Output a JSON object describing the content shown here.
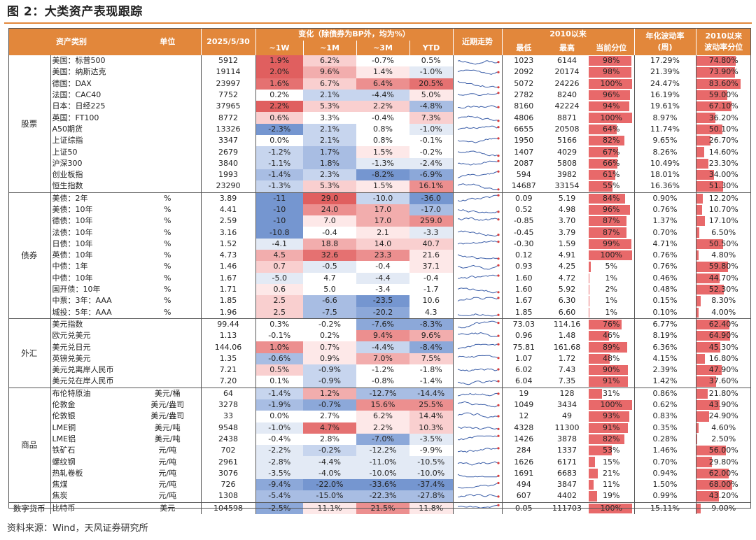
{
  "title": "图 2：大类资产表现跟踪",
  "source": "资料来源：Wind，天风证券研究所",
  "header": {
    "top": {
      "change_group": "变化（除债券为BP外，均为%）",
      "since2010": "2010以来"
    },
    "asset": "资产类别",
    "unit": "单位",
    "date": "2025/5/30",
    "w1": "~1W",
    "m1": "~1M",
    "m3": "~3M",
    "ytd": "YTD",
    "trend": "近期走势",
    "low": "最低",
    "high": "最高",
    "pct": "当前分位",
    "vol": "年化波动率",
    "vol_sub": "(周)",
    "volpct": "2010以来",
    "volpct_sub": "波动率分位"
  },
  "groups": [
    {
      "name": "股票",
      "rows": [
        {
          "name": "美国：标普500",
          "unit": "",
          "value": "5912",
          "w1": "1.9%",
          "m1": "6.2%",
          "m3": "-0.7%",
          "ytd": "0.5%",
          "low": "1023",
          "high": "6144",
          "pct": "98%",
          "pct_v": 98,
          "vol": "17.29%",
          "volpct": "74.80%",
          "volpct_v": 74.8,
          "c": [
            6,
            2,
            0,
            0
          ]
        },
        {
          "name": "美国：纳斯达克",
          "unit": "",
          "value": "19114",
          "w1": "2.0%",
          "m1": "9.6%",
          "m3": "1.4%",
          "ytd": "-1.0%",
          "low": "2092",
          "high": "20174",
          "pct": "98%",
          "pct_v": 98,
          "vol": "21.39%",
          "volpct": "73.90%",
          "volpct_v": 73.9,
          "c": [
            6,
            3,
            1,
            -1
          ]
        },
        {
          "name": "德国：DAX",
          "unit": "",
          "value": "23997",
          "w1": "1.6%",
          "m1": "6.7%",
          "m3": "6.4%",
          "ytd": "20.5%",
          "low": "5072",
          "high": "24226",
          "pct": "100%",
          "pct_v": 100,
          "vol": "24.47%",
          "volpct": "83.60%",
          "volpct_v": 83.6,
          "c": [
            5,
            2,
            4,
            5
          ]
        },
        {
          "name": "法国：CAC40",
          "unit": "",
          "value": "7752",
          "w1": "0.2%",
          "m1": "2.1%",
          "m3": "-4.4%",
          "ytd": "5.0%",
          "low": "2782",
          "high": "8240",
          "pct": "96%",
          "pct_v": 96,
          "vol": "16.19%",
          "volpct": "59.00%",
          "volpct_v": 59.0,
          "c": [
            0,
            -2,
            -2,
            1
          ]
        },
        {
          "name": "日本：日经225",
          "unit": "",
          "value": "37965",
          "w1": "2.2%",
          "m1": "5.3%",
          "m3": "2.2%",
          "ytd": "-4.8%",
          "low": "8160",
          "high": "42224",
          "pct": "94%",
          "pct_v": 94,
          "vol": "19.61%",
          "volpct": "67.10%",
          "volpct_v": 67.1,
          "c": [
            6,
            2,
            2,
            -3
          ]
        },
        {
          "name": "英国：FT100",
          "unit": "",
          "value": "8772",
          "w1": "0.6%",
          "m1": "3.3%",
          "m3": "-0.4%",
          "ytd": "7.3%",
          "low": "4806",
          "high": "8871",
          "pct": "100%",
          "pct_v": 100,
          "vol": "8.97%",
          "volpct": "36.20%",
          "volpct_v": 36.2,
          "c": [
            2,
            0,
            0,
            2
          ]
        },
        {
          "name": "A50期货",
          "unit": "",
          "value": "13326",
          "w1": "-2.3%",
          "m1": "2.1%",
          "m3": "0.8%",
          "ytd": "-1.0%",
          "low": "6655",
          "high": "20508",
          "pct": "64%",
          "pct_v": 64,
          "vol": "11.74%",
          "volpct": "50.10%",
          "volpct_v": 50.1,
          "c": [
            -5,
            -2,
            0,
            -1
          ]
        },
        {
          "name": "上证综指",
          "unit": "",
          "value": "3347",
          "w1": "0.0%",
          "m1": "2.1%",
          "m3": "0.8%",
          "ytd": "-0.1%",
          "low": "1950",
          "high": "5166",
          "pct": "82%",
          "pct_v": 82,
          "vol": "9.65%",
          "volpct": "26.70%",
          "volpct_v": 26.7,
          "c": [
            0,
            -2,
            0,
            0
          ]
        },
        {
          "name": "上证50",
          "unit": "",
          "value": "2679",
          "w1": "-1.2%",
          "m1": "1.7%",
          "m3": "1.5%",
          "ytd": "-0.2%",
          "low": "1407",
          "high": "4029",
          "pct": "67%",
          "pct_v": 67,
          "vol": "8.26%",
          "volpct": "14.60%",
          "volpct_v": 14.6,
          "c": [
            -2,
            -3,
            1,
            0
          ]
        },
        {
          "name": "沪深300",
          "unit": "",
          "value": "3840",
          "w1": "-1.1%",
          "m1": "1.8%",
          "m3": "-1.3%",
          "ytd": "-2.4%",
          "low": "2087",
          "high": "5808",
          "pct": "66%",
          "pct_v": 66,
          "vol": "10.49%",
          "volpct": "23.30%",
          "volpct_v": 23.3,
          "c": [
            -2,
            -3,
            -1,
            -1
          ]
        },
        {
          "name": "创业板指",
          "unit": "",
          "value": "1993",
          "w1": "-1.4%",
          "m1": "2.3%",
          "m3": "-8.2%",
          "ytd": "-6.9%",
          "low": "594",
          "high": "3982",
          "pct": "61%",
          "pct_v": 61,
          "vol": "18.01%",
          "volpct": "34.00%",
          "volpct_v": 34.0,
          "c": [
            -3,
            -2,
            -5,
            -4
          ]
        },
        {
          "name": "恒生指数",
          "unit": "",
          "value": "23290",
          "w1": "-1.3%",
          "m1": "5.3%",
          "m3": "1.5%",
          "ytd": "16.1%",
          "low": "14687",
          "high": "33154",
          "pct": "55%",
          "pct_v": 55,
          "vol": "16.36%",
          "volpct": "51.30%",
          "volpct_v": 51.3,
          "c": [
            -2,
            2,
            1,
            4
          ]
        }
      ]
    },
    {
      "name": "债券",
      "rows": [
        {
          "name": "美债：2年",
          "unit": "%",
          "value": "3.89",
          "w1": "-11",
          "m1": "29.0",
          "m3": "-10.0",
          "ytd": "-36.0",
          "low": "0.09",
          "high": "5.19",
          "pct": "84%",
          "pct_v": 84,
          "vol": "0.90%",
          "volpct": "12.20%",
          "volpct_v": 12.2,
          "c": [
            -5,
            6,
            -2,
            -5
          ]
        },
        {
          "name": "美债：10年",
          "unit": "%",
          "value": "4.41",
          "w1": "-10",
          "m1": "24.0",
          "m3": "17.0",
          "ytd": "-17.0",
          "low": "0.52",
          "high": "4.98",
          "pct": "96%",
          "pct_v": 96,
          "vol": "0.76%",
          "volpct": "10.70%",
          "volpct_v": 10.7,
          "c": [
            -5,
            4,
            3,
            -3
          ]
        },
        {
          "name": "德债：10年",
          "unit": "%",
          "value": "2.59",
          "w1": "-10",
          "m1": "7.0",
          "m3": "17.0",
          "ytd": "259.0",
          "low": "-0.85",
          "high": "3.70",
          "pct": "87%",
          "pct_v": 87,
          "vol": "1.37%",
          "volpct": "17.10%",
          "volpct_v": 17.1,
          "c": [
            -5,
            1,
            3,
            4
          ]
        },
        {
          "name": "法债：10年",
          "unit": "%",
          "value": "3.16",
          "w1": "-10.8",
          "m1": "-0.4",
          "m3": "2.1",
          "ytd": "-3.3",
          "low": "-0.45",
          "high": "3.79",
          "pct": "87%",
          "pct_v": 87,
          "vol": "0.70%",
          "volpct": "6.50%",
          "volpct_v": 6.5,
          "c": [
            -5,
            0,
            1,
            -1
          ]
        },
        {
          "name": "日债：10年",
          "unit": "%",
          "value": "1.52",
          "w1": "-4.1",
          "m1": "18.8",
          "m3": "14.0",
          "ytd": "40.7",
          "low": "-0.30",
          "high": "1.59",
          "pct": "99%",
          "pct_v": 99,
          "vol": "4.71%",
          "volpct": "50.50%",
          "volpct_v": 50.5,
          "c": [
            -1,
            3,
            2,
            2
          ]
        },
        {
          "name": "英债：10年",
          "unit": "%",
          "value": "4.73",
          "w1": "4.5",
          "m1": "32.6",
          "m3": "23.3",
          "ytd": "21.6",
          "low": "0.12",
          "high": "4.91",
          "pct": "100%",
          "pct_v": 100,
          "vol": "0.76%",
          "volpct": "4.80%",
          "volpct_v": 4.8,
          "c": [
            3,
            5,
            4,
            1
          ]
        },
        {
          "name": "中债：1年",
          "unit": "%",
          "value": "1.46",
          "w1": "0.7",
          "m1": "-0.5",
          "m3": "-0.4",
          "ytd": "37.1",
          "low": "0.93",
          "high": "4.25",
          "pct": "5%",
          "pct_v": 5,
          "vol": "0.76%",
          "volpct": "59.80%",
          "volpct_v": 59.8,
          "c": [
            2,
            -1,
            0,
            1
          ]
        },
        {
          "name": "中债：10年",
          "unit": "%",
          "value": "1.67",
          "w1": "-5.0",
          "m1": "4.7",
          "m3": "-4.4",
          "ytd": "-0.4",
          "low": "1.60",
          "high": "4.72",
          "pct": "1%",
          "pct_v": 1,
          "vol": "0.46%",
          "volpct": "44.70%",
          "volpct_v": 44.7,
          "c": [
            -1,
            0,
            -1,
            0
          ]
        },
        {
          "name": "国开债：10年",
          "unit": "%",
          "value": "1.71",
          "w1": "0.6",
          "m1": "5.0",
          "m3": "-3.4",
          "ytd": "-1.7",
          "low": "1.60",
          "high": "5.92",
          "pct": "2%",
          "pct_v": 2,
          "vol": "0.48%",
          "volpct": "52.30%",
          "volpct_v": 52.3,
          "c": [
            1,
            0,
            0,
            0
          ]
        },
        {
          "name": "中票：3年：AAA",
          "unit": "%",
          "value": "1.85",
          "w1": "2.5",
          "m1": "-6.6",
          "m3": "-23.5",
          "ytd": "10.6",
          "low": "1.67",
          "high": "6.30",
          "pct": "1%",
          "pct_v": 1,
          "vol": "0.15%",
          "volpct": "8.30%",
          "volpct_v": 8.3,
          "c": [
            2,
            -3,
            -5,
            0
          ]
        },
        {
          "name": "城投：5年：AAA",
          "unit": "%",
          "value": "1.96",
          "w1": "2.5",
          "m1": "-7.5",
          "m3": "-20.2",
          "ytd": "4.3",
          "low": "1.85",
          "high": "6.60",
          "pct": "1%",
          "pct_v": 1,
          "vol": "0.10%",
          "volpct": "4.00%",
          "volpct_v": 4.0,
          "c": [
            2,
            -3,
            -4,
            0
          ]
        }
      ]
    },
    {
      "name": "外汇",
      "rows": [
        {
          "name": "美元指数",
          "unit": "",
          "value": "99.44",
          "w1": "0.3%",
          "m1": "-0.2%",
          "m3": "-7.6%",
          "ytd": "-8.3%",
          "low": "73.03",
          "high": "114.16",
          "pct": "76%",
          "pct_v": 76,
          "vol": "6.77%",
          "volpct": "62.40%",
          "volpct_v": 62.4,
          "c": [
            0,
            0,
            -4,
            -4
          ]
        },
        {
          "name": "欧元兑美元",
          "unit": "",
          "value": "1.13",
          "w1": "-0.1%",
          "m1": "0.2%",
          "m3": "9.4%",
          "ytd": "9.6%",
          "low": "0.96",
          "high": "1.48",
          "pct": "46%",
          "pct_v": 46,
          "vol": "8.19%",
          "volpct": "64.90%",
          "volpct_v": 64.9,
          "c": [
            0,
            0,
            4,
            3
          ]
        },
        {
          "name": "美元兑日元",
          "unit": "",
          "value": "144.06",
          "w1": "1.0%",
          "m1": "0.7%",
          "m3": "-4.4%",
          "ytd": "-8.4%",
          "low": "75.81",
          "high": "161.68",
          "pct": "89%",
          "pct_v": 89,
          "vol": "6.36%",
          "volpct": "45.30%",
          "volpct_v": 45.3,
          "c": [
            4,
            1,
            -2,
            -4
          ]
        },
        {
          "name": "英镑兑美元",
          "unit": "",
          "value": "1.35",
          "w1": "-0.6%",
          "m1": "0.9%",
          "m3": "7.0%",
          "ytd": "7.5%",
          "low": "1.07",
          "high": "1.72",
          "pct": "48%",
          "pct_v": 48,
          "vol": "4.15%",
          "volpct": "16.80%",
          "volpct_v": 16.8,
          "c": [
            -3,
            1,
            3,
            2
          ]
        },
        {
          "name": "美元兑离岸人民币",
          "unit": "",
          "value": "7.21",
          "w1": "0.5%",
          "m1": "-0.9%",
          "m3": "-1.2%",
          "ytd": "-1.8%",
          "low": "6.02",
          "high": "7.43",
          "pct": "90%",
          "pct_v": 90,
          "vol": "2.39%",
          "volpct": "47.90%",
          "volpct_v": 47.9,
          "c": [
            2,
            -2,
            0,
            0
          ]
        },
        {
          "name": "美元兑在岸人民币",
          "unit": "",
          "value": "7.20",
          "w1": "0.1%",
          "m1": "-0.9%",
          "m3": "-0.8%",
          "ytd": "-1.4%",
          "low": "6.04",
          "high": "7.35",
          "pct": "91%",
          "pct_v": 91,
          "vol": "1.42%",
          "volpct": "37.60%",
          "volpct_v": 37.6,
          "c": [
            0,
            -2,
            0,
            0
          ]
        }
      ]
    },
    {
      "name": "商品",
      "rows": [
        {
          "name": "布伦特原油",
          "unit": "美元/桶",
          "value": "64",
          "w1": "-1.4%",
          "m1": "1.2%",
          "m3": "-12.7%",
          "ytd": "-14.4%",
          "low": "19",
          "high": "128",
          "pct": "31%",
          "pct_v": 31,
          "vol": "0.86%",
          "volpct": "21.80%",
          "volpct_v": 21.8,
          "c": [
            -2,
            3,
            -3,
            -3
          ]
        },
        {
          "name": "伦敦金",
          "unit": "美元/盎司",
          "value": "3278",
          "w1": "-1.9%",
          "m1": "-0.7%",
          "m3": "15.6%",
          "ytd": "25.5%",
          "low": "1049",
          "high": "3434",
          "pct": "100%",
          "pct_v": 100,
          "vol": "0.62%",
          "volpct": "43.90%",
          "volpct_v": 43.9,
          "c": [
            -3,
            -4,
            4,
            4
          ]
        },
        {
          "name": "伦敦银",
          "unit": "美元/盎司",
          "value": "33",
          "w1": "0.0%",
          "m1": "2.7%",
          "m3": "6.2%",
          "ytd": "14.4%",
          "low": "12",
          "high": "49",
          "pct": "93%",
          "pct_v": 93,
          "vol": "0.83%",
          "volpct": "24.90%",
          "volpct_v": 24.9,
          "c": [
            0,
            0,
            1,
            2
          ]
        },
        {
          "name": "LME铜",
          "unit": "美元/吨",
          "value": "9548",
          "w1": "-1.0%",
          "m1": "4.7%",
          "m3": "2.2%",
          "ytd": "10.3%",
          "low": "4328",
          "high": "11300",
          "pct": "91%",
          "pct_v": 91,
          "vol": "0.35%",
          "volpct": "4.60%",
          "volpct_v": 4.6,
          "c": [
            -1,
            5,
            1,
            2
          ]
        },
        {
          "name": "LME铝",
          "unit": "美元/吨",
          "value": "2438",
          "w1": "-0.4%",
          "m1": "2.8%",
          "m3": "-7.0%",
          "ytd": "-3.5%",
          "low": "1426",
          "high": "3878",
          "pct": "82%",
          "pct_v": 82,
          "vol": "0.28%",
          "volpct": "2.50%",
          "volpct_v": 2.5,
          "c": [
            0,
            0,
            -4,
            -1
          ]
        },
        {
          "name": "铁矿石",
          "unit": "元/吨",
          "value": "702",
          "w1": "-2.2%",
          "m1": "-0.2%",
          "m3": "-12.2%",
          "ytd": "-9.9%",
          "low": "284",
          "high": "1337",
          "pct": "53%",
          "pct_v": 53,
          "vol": "1.46%",
          "volpct": "56.00%",
          "volpct_v": 56.0,
          "c": [
            -1,
            -2,
            -1,
            0
          ]
        },
        {
          "name": "螺纹钢",
          "unit": "元/吨",
          "value": "2961",
          "w1": "-2.8%",
          "m1": "-4.4%",
          "m3": "-11.0%",
          "ytd": "-10.5%",
          "low": "1626",
          "high": "6171",
          "pct": "15%",
          "pct_v": 15,
          "vol": "0.70%",
          "volpct": "29.80%",
          "volpct_v": 29.8,
          "c": [
            -1,
            -1,
            -1,
            -1
          ]
        },
        {
          "name": "热轧卷板",
          "unit": "元/吨",
          "value": "3076",
          "w1": "-3.5%",
          "m1": "-4.0%",
          "m3": "-10.0%",
          "ytd": "-10.0%",
          "low": "1691",
          "high": "6683",
          "pct": "21%",
          "pct_v": 21,
          "vol": "0.94%",
          "volpct": "62.00%",
          "volpct_v": 62.0,
          "c": [
            -1,
            -1,
            -1,
            -1
          ]
        },
        {
          "name": "焦煤",
          "unit": "元/吨",
          "value": "726",
          "w1": "-9.4%",
          "m1": "-22.0%",
          "m3": "-33.6%",
          "ytd": "-37.4%",
          "low": "494",
          "high": "3847",
          "pct": "11%",
          "pct_v": 11,
          "vol": "1.50%",
          "volpct": "68.00%",
          "volpct_v": 68.0,
          "c": [
            -4,
            -5,
            -5,
            -5
          ]
        },
        {
          "name": "焦炭",
          "unit": "元/吨",
          "value": "1308",
          "w1": "-5.4%",
          "m1": "-15.0%",
          "m3": "-22.3%",
          "ytd": "-27.8%",
          "low": "607",
          "high": "4402",
          "pct": "19%",
          "pct_v": 19,
          "vol": "0.99%",
          "volpct": "43.20%",
          "volpct_v": 43.2,
          "c": [
            -3,
            -3,
            -3,
            -3
          ]
        }
      ]
    },
    {
      "name": "数字货币",
      "rows": [
        {
          "name": "比特币",
          "unit": "美元",
          "value": "104598",
          "w1": "-2.5%",
          "m1": "11.1%",
          "m3": "21.5%",
          "ytd": "11.8%",
          "low": "0.05",
          "high": "111703",
          "pct": "100%",
          "pct_v": 100,
          "vol": "15.11%",
          "volpct": "9.00%",
          "volpct_v": 9.0,
          "c": [
            -4,
            1,
            4,
            1
          ]
        }
      ]
    }
  ],
  "colors": {
    "header": "#e2873b",
    "bar": "#e8696a",
    "spark": "#3b5ea8",
    "spark_end": "#d93b3b"
  }
}
